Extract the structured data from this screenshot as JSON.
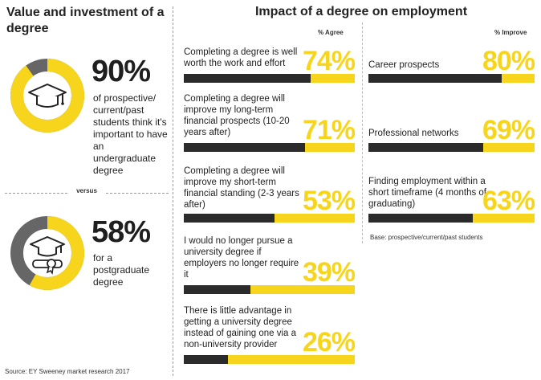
{
  "left": {
    "title": "Value and investment of a degree",
    "stat1": {
      "value": "90%",
      "fraction": 0.9,
      "text": "of prospective/ current/past students think it's important to have an undergraduate degree"
    },
    "versus": "versus",
    "stat2": {
      "value": "58%",
      "fraction": 0.58,
      "text": "for a postgraduate degree"
    }
  },
  "right": {
    "title": "Impact of a degree on employment",
    "agree_header": "% Agree",
    "improve_header": "% Improve",
    "base_note": "Base: prospective/current/past students"
  },
  "source": "Source: EY Sweeney market research 2017",
  "colors": {
    "yellow": "#f7d51d",
    "dark": "#2b2b2b",
    "ring_grey": "#666666"
  },
  "icons": [
    "graduation-cap-icon",
    "graduation-cap-diploma-icon"
  ],
  "chart_data": [
    {
      "type": "bar",
      "categories": [
        "Completing a degree is well worth the work and effort",
        "Completing a degree will improve my long-term financial prospects (10-20 years after)",
        "Completing a degree will improve my short-term financial standing (2-3 years after)",
        "I would no longer pursue a university degree if employers no longer require it",
        "There is little advantage in getting a university degree instead of gaining one via a non-university provider"
      ],
      "values": [
        74,
        71,
        53,
        39,
        26
      ],
      "labels": [
        "74%",
        "71%",
        "53%",
        "39%",
        "26%"
      ],
      "ylabel": "% Agree",
      "ylim": [
        0,
        100
      ]
    },
    {
      "type": "bar",
      "categories": [
        "Career prospects",
        "Professional networks",
        "Finding employment within a short timeframe (4 months of graduating)"
      ],
      "values": [
        80,
        69,
        63
      ],
      "labels": [
        "80%",
        "69%",
        "63%"
      ],
      "ylabel": "% Improve",
      "ylim": [
        0,
        100
      ]
    }
  ]
}
